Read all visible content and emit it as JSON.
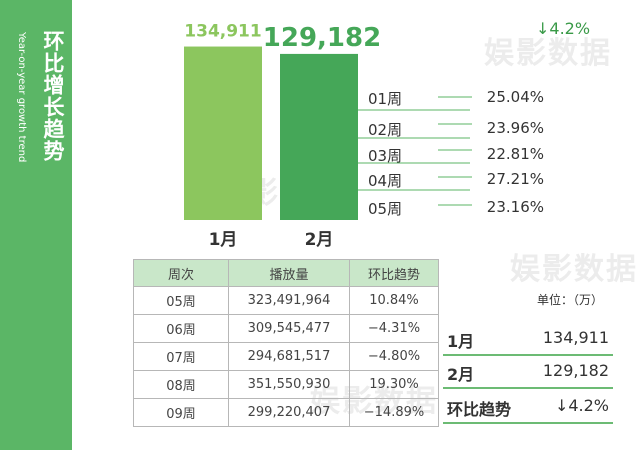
{
  "side": {
    "title": "环比增长趋势",
    "subtitle": "Year-on-year growth trend"
  },
  "watermark": "娱影数据",
  "change_top": "↓4.2%",
  "weeks": [
    {
      "label": "01周",
      "value": "25.04%"
    },
    {
      "label": "02周",
      "value": "23.96%"
    },
    {
      "label": "03周",
      "value": "22.81%"
    },
    {
      "label": "04周",
      "value": "27.21%"
    },
    {
      "label": "05周",
      "value": "23.16%"
    }
  ],
  "table": {
    "headers": [
      "周次",
      "播放量",
      "环比趋势"
    ],
    "rows": [
      [
        "05周",
        "323,491,964",
        "10.84%"
      ],
      [
        "06周",
        "309,545,477",
        "−4.31%"
      ],
      [
        "07周",
        "294,681,517",
        "−4.80%"
      ],
      [
        "08周",
        "351,550,930",
        "19.30%"
      ],
      [
        "09周",
        "299,220,407",
        "−14.89%"
      ]
    ]
  },
  "unit": "单位：（万）",
  "summary": [
    {
      "key": "1月",
      "value": "134,911"
    },
    {
      "key": "2月",
      "value": "129,182"
    },
    {
      "key": "环比趋势",
      "value": "↓4.2%"
    }
  ],
  "colors": {
    "bar1": "#8cc65e",
    "bar2": "#45a758",
    "accent": "#5bb666"
  },
  "chart_data": {
    "type": "bar",
    "categories": [
      "1月",
      "2月"
    ],
    "values": [
      134911,
      129182
    ],
    "value_labels": [
      "134,911",
      "129,182"
    ],
    "title": "",
    "xlabel": "",
    "ylabel": "",
    "ylim": [
      0,
      140000
    ]
  }
}
